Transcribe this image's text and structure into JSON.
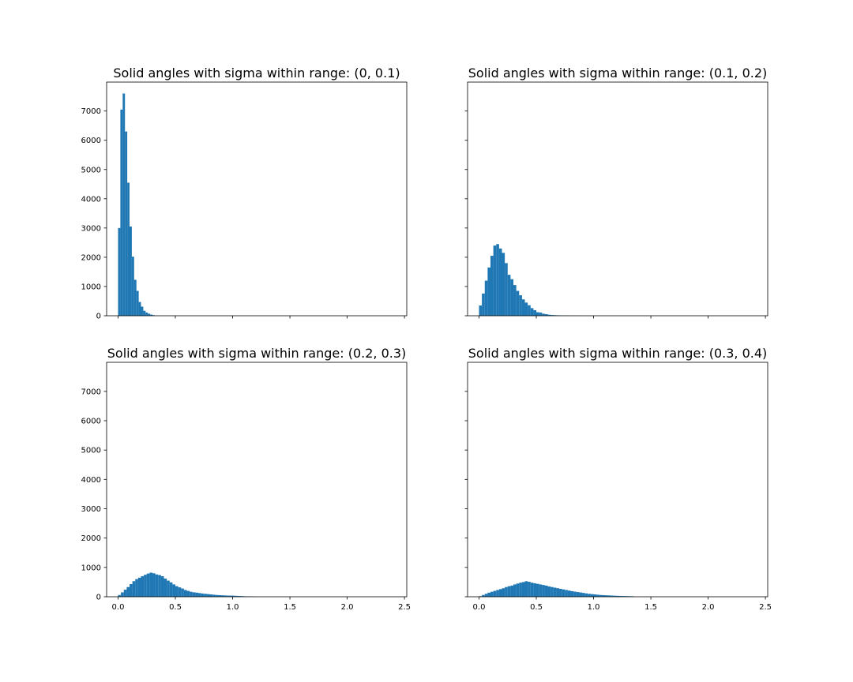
{
  "figure": {
    "sharex": true,
    "sharey": true,
    "bar_color": "#1f77b4",
    "axis_color": "#000000",
    "background": "#ffffff"
  },
  "chart_data": [
    {
      "type": "bar",
      "histogram": true,
      "title": "Solid angles with sigma within range: (0, 0.1)",
      "xlabel": "",
      "ylabel": "",
      "xlim": [
        -0.1,
        2.52
      ],
      "ylim": [
        0,
        7990
      ],
      "grid": false,
      "xticks": [
        0.0,
        0.5,
        1.0,
        1.5,
        2.0,
        2.5
      ],
      "yticks": [
        0,
        1000,
        2000,
        3000,
        4000,
        5000,
        6000,
        7000
      ],
      "show_xtick_labels": false,
      "show_ytick_labels": true,
      "bin_start": 0.0,
      "bin_width": 0.02,
      "values": [
        3000,
        7050,
        7600,
        6300,
        4550,
        3050,
        2020,
        1230,
        850,
        470,
        310,
        170,
        110,
        70,
        40,
        20
      ]
    },
    {
      "type": "bar",
      "histogram": true,
      "title": "Solid angles with sigma within range: (0.1, 0.2)",
      "xlabel": "",
      "ylabel": "",
      "xlim": [
        -0.1,
        2.52
      ],
      "ylim": [
        0,
        7990
      ],
      "grid": false,
      "xticks": [
        0.0,
        0.5,
        1.0,
        1.5,
        2.0,
        2.5
      ],
      "yticks": [
        0,
        1000,
        2000,
        3000,
        4000,
        5000,
        6000,
        7000
      ],
      "show_xtick_labels": false,
      "show_ytick_labels": false,
      "bin_start": 0.0,
      "bin_width": 0.025,
      "values": [
        350,
        760,
        1200,
        1650,
        2050,
        2400,
        2450,
        2300,
        2150,
        1800,
        1400,
        1250,
        1050,
        850,
        700,
        560,
        450,
        360,
        260,
        190,
        120,
        110,
        70,
        55,
        35,
        25,
        20,
        15,
        12,
        10,
        8,
        6,
        5,
        4,
        3,
        2
      ]
    },
    {
      "type": "bar",
      "histogram": true,
      "title": "Solid angles with sigma within range: (0.2, 0.3)",
      "xlabel": "",
      "ylabel": "",
      "xlim": [
        -0.1,
        2.52
      ],
      "ylim": [
        0,
        7990
      ],
      "grid": false,
      "xticks": [
        0.0,
        0.5,
        1.0,
        1.5,
        2.0,
        2.5
      ],
      "yticks": [
        0,
        1000,
        2000,
        3000,
        4000,
        5000,
        6000,
        7000
      ],
      "show_xtick_labels": true,
      "show_ytick_labels": true,
      "bin_start": 0.0,
      "bin_width": 0.025,
      "values": [
        60,
        150,
        240,
        330,
        430,
        530,
        600,
        650,
        700,
        750,
        790,
        820,
        800,
        760,
        740,
        700,
        620,
        550,
        490,
        420,
        360,
        320,
        280,
        230,
        200,
        170,
        150,
        140,
        125,
        110,
        100,
        90,
        80,
        70,
        60,
        55,
        50,
        45,
        40,
        38,
        35,
        30,
        25,
        20,
        15,
        12,
        10,
        8
      ]
    },
    {
      "type": "bar",
      "histogram": true,
      "title": "Solid angles with sigma within range: (0.3, 0.4)",
      "xlabel": "",
      "ylabel": "",
      "xlim": [
        -0.1,
        2.52
      ],
      "ylim": [
        0,
        7990
      ],
      "grid": false,
      "xticks": [
        0.0,
        0.5,
        1.0,
        1.5,
        2.0,
        2.5
      ],
      "yticks": [
        0,
        1000,
        2000,
        3000,
        4000,
        5000,
        6000,
        7000
      ],
      "show_xtick_labels": true,
      "show_ytick_labels": false,
      "bin_start": 0.0,
      "bin_width": 0.025,
      "values": [
        20,
        60,
        100,
        140,
        170,
        200,
        230,
        260,
        290,
        330,
        360,
        380,
        420,
        450,
        480,
        500,
        530,
        510,
        480,
        460,
        440,
        420,
        400,
        380,
        350,
        330,
        310,
        290,
        270,
        250,
        230,
        210,
        190,
        175,
        160,
        145,
        130,
        115,
        100,
        90,
        80,
        70,
        60,
        55,
        50,
        45,
        40,
        35,
        30,
        28,
        25,
        22,
        20,
        18
      ]
    }
  ]
}
